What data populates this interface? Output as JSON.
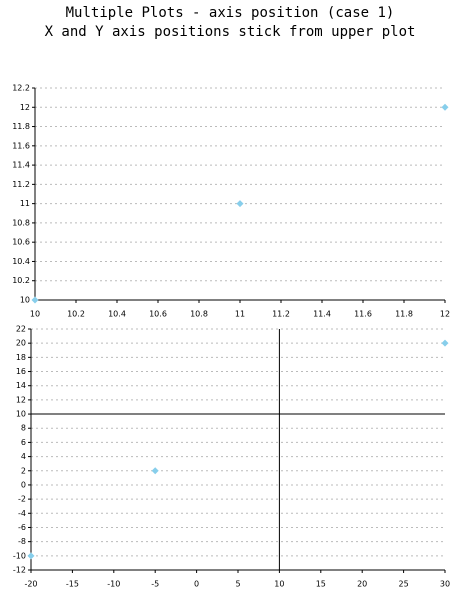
{
  "chart_data": [
    {
      "type": "scatter",
      "title": "Multiple Plots - axis position (case 1)",
      "subtitle": "X and Y axis positions stick from upper plot",
      "x": [
        10,
        11,
        12
      ],
      "values": [
        10,
        11,
        12
      ],
      "color": "#87ceeb",
      "xlim": [
        10,
        12
      ],
      "ylim": [
        10,
        12.2
      ],
      "xticks": [
        10,
        10.2,
        10.4,
        10.6,
        10.8,
        11,
        11.2,
        11.4,
        11.6,
        11.8,
        12
      ],
      "yticks": [
        10,
        10.2,
        10.4,
        10.6,
        10.8,
        11,
        11.2,
        11.4,
        11.6,
        11.8,
        12,
        12.2
      ],
      "grid": true
    },
    {
      "type": "scatter",
      "x": [
        -20,
        -5,
        30
      ],
      "values": [
        -10,
        2,
        20
      ],
      "color": "#87ceeb",
      "xlim": [
        -20,
        30
      ],
      "ylim": [
        -12,
        22
      ],
      "xticks": [
        -20,
        -15,
        -10,
        -5,
        0,
        5,
        10,
        15,
        20,
        25,
        30
      ],
      "yticks": [
        -12,
        -10,
        -8,
        -6,
        -4,
        -2,
        0,
        2,
        4,
        6,
        8,
        10,
        12,
        14,
        16,
        18,
        20,
        22
      ],
      "axis_position": {
        "x": 10,
        "y": 10
      },
      "grid": true
    }
  ]
}
